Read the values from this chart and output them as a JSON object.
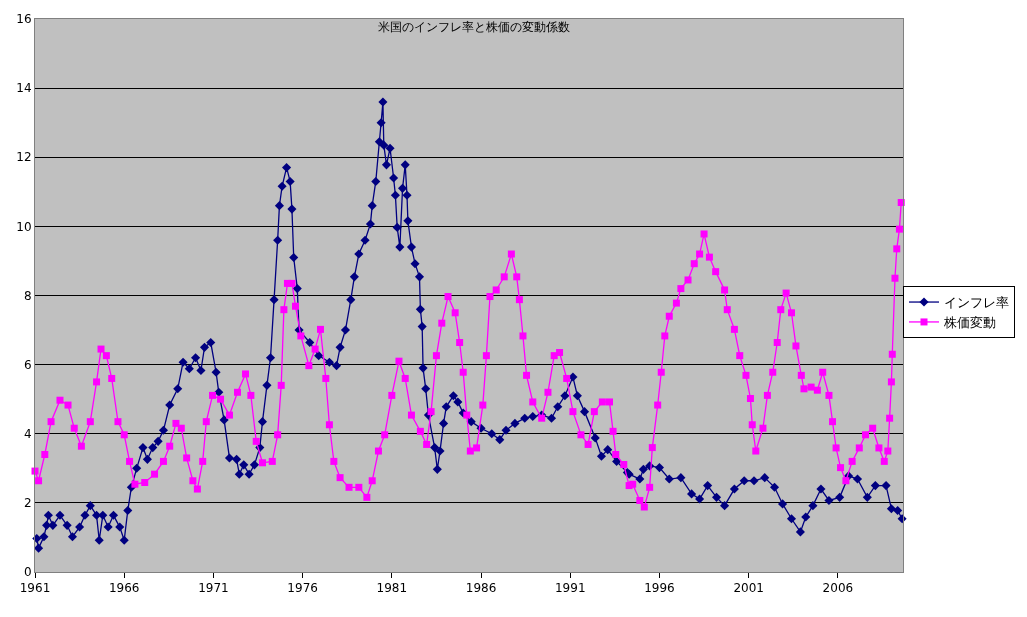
{
  "chart_data": {
    "type": "line",
    "title": "米国のインフレ率と株価の変動係数",
    "xlim": [
      1961,
      2009.65
    ],
    "xticks": [
      1961,
      1966,
      1971,
      1976,
      1981,
      1986,
      1991,
      1996,
      2001,
      2006
    ],
    "ylim": [
      0,
      16
    ],
    "yticks": [
      0,
      2,
      4,
      6,
      8,
      10,
      12,
      14,
      16
    ],
    "grid": "y",
    "legend": "right",
    "series": [
      {
        "name": "インフレ率",
        "color": "#000080",
        "marker": "diamond",
        "x": [
          1961.1,
          1961.2,
          1961.5,
          1961.65,
          1961.75,
          1962.0,
          1962.4,
          1962.8,
          1963.1,
          1963.5,
          1963.8,
          1964.1,
          1964.45,
          1964.6,
          1964.8,
          1965.1,
          1965.4,
          1965.75,
          1966.0,
          1966.2,
          1966.4,
          1966.7,
          1967.05,
          1967.3,
          1967.6,
          1967.9,
          1968.2,
          1968.55,
          1969.0,
          1969.3,
          1969.65,
          1970.0,
          1970.3,
          1970.5,
          1970.85,
          1971.15,
          1971.3,
          1971.6,
          1971.9,
          1972.3,
          1972.45,
          1972.7,
          1973.0,
          1973.3,
          1973.6,
          1973.75,
          1974.0,
          1974.2,
          1974.4,
          1974.6,
          1974.7,
          1974.85,
          1975.1,
          1975.3,
          1975.4,
          1975.5,
          1975.7,
          1975.8,
          1976.4,
          1976.9,
          1977.5,
          1977.9,
          1978.1,
          1978.4,
          1978.7,
          1978.9,
          1979.15,
          1979.5,
          1979.8,
          1979.9,
          1980.1,
          1980.3,
          1980.4,
          1980.5,
          1980.55,
          1980.7,
          1980.9,
          1981.1,
          1981.2,
          1981.3,
          1981.45,
          1981.6,
          1981.75,
          1981.85,
          1981.9,
          1982.1,
          1982.3,
          1982.55,
          1982.6,
          1982.7,
          1982.75,
          1982.9,
          1983.05,
          1983.4,
          1983.55,
          1983.7,
          1983.9,
          1984.05,
          1984.45,
          1984.7,
          1985.0,
          1985.45,
          1986.0,
          1986.6,
          1987.05,
          1987.4,
          1987.9,
          1988.45,
          1988.9,
          1989.4,
          1989.95,
          1990.3,
          1990.7,
          1991.15,
          1991.4,
          1991.8,
          1992.4,
          1992.75,
          1993.1,
          1993.6,
          1994.2,
          1994.3,
          1994.9,
          1995.1,
          1995.45,
          1996.0,
          1996.55,
          1997.2,
          1997.8,
          1998.25,
          1998.7,
          1999.2,
          1999.65,
          2000.2,
          2000.75,
          2001.3,
          2001.9,
          2002.45,
          2002.9,
          2003.4,
          2003.9,
          2004.2,
          2004.6,
          2005.05,
          2005.5,
          2006.1,
          2006.6,
          2007.1,
          2007.65,
          2008.1,
          2008.7,
          2009.0,
          2009.35,
          2009.6
        ],
        "values": [
          0.97,
          0.69,
          1.02,
          1.35,
          1.64,
          1.35,
          1.64,
          1.35,
          1.02,
          1.3,
          1.64,
          1.92,
          1.64,
          0.92,
          1.64,
          1.3,
          1.64,
          1.3,
          0.92,
          1.78,
          2.45,
          3.0,
          3.6,
          3.26,
          3.6,
          3.78,
          4.1,
          4.83,
          5.3,
          6.07,
          5.88,
          6.2,
          5.83,
          6.5,
          6.64,
          5.78,
          5.2,
          4.4,
          3.3,
          3.26,
          2.83,
          3.1,
          2.83,
          3.1,
          3.6,
          4.35,
          5.4,
          6.2,
          7.88,
          9.6,
          10.6,
          11.16,
          11.7,
          11.3,
          10.5,
          9.1,
          8.2,
          7.0,
          6.64,
          6.26,
          6.07,
          5.97,
          6.5,
          7.0,
          7.88,
          8.54,
          9.2,
          9.6,
          10.07,
          10.6,
          11.3,
          12.45,
          13.0,
          13.6,
          12.35,
          11.78,
          12.26,
          11.4,
          10.9,
          9.97,
          9.4,
          11.1,
          11.78,
          10.9,
          10.16,
          9.4,
          8.92,
          8.54,
          7.6,
          7.1,
          5.9,
          5.3,
          4.54,
          3.6,
          2.97,
          3.5,
          4.3,
          4.78,
          5.1,
          4.92,
          4.6,
          4.35,
          4.16,
          4.0,
          3.83,
          4.1,
          4.3,
          4.45,
          4.5,
          4.54,
          4.45,
          4.78,
          5.1,
          5.64,
          5.1,
          4.64,
          3.88,
          3.35,
          3.54,
          3.2,
          2.88,
          2.83,
          2.69,
          2.97,
          3.07,
          3.02,
          2.69,
          2.73,
          2.26,
          2.11,
          2.5,
          2.16,
          1.92,
          2.4,
          2.64,
          2.64,
          2.73,
          2.45,
          1.97,
          1.54,
          1.16,
          1.59,
          1.92,
          2.4,
          2.07,
          2.16,
          2.78,
          2.69,
          2.16,
          2.5,
          2.5,
          1.83,
          1.78,
          1.54
        ]
      },
      {
        "name": "株価変動",
        "color": "#ff00ff",
        "marker": "square",
        "x": [
          1961.0,
          1961.2,
          1961.55,
          1961.9,
          1962.4,
          1962.85,
          1963.2,
          1963.6,
          1964.1,
          1964.45,
          1964.7,
          1965.0,
          1965.3,
          1965.65,
          1966.0,
          1966.3,
          1966.6,
          1967.15,
          1967.7,
          1968.2,
          1968.55,
          1968.9,
          1969.2,
          1969.5,
          1969.85,
          1970.1,
          1970.4,
          1970.6,
          1970.95,
          1971.4,
          1971.9,
          1972.35,
          1972.8,
          1973.1,
          1973.4,
          1973.75,
          1974.3,
          1974.6,
          1974.8,
          1974.95,
          1975.15,
          1975.4,
          1975.6,
          1975.9,
          1976.35,
          1976.7,
          1977.0,
          1977.3,
          1977.5,
          1977.75,
          1978.1,
          1978.6,
          1979.15,
          1979.6,
          1979.9,
          1980.25,
          1980.6,
          1981.0,
          1981.4,
          1981.75,
          1982.1,
          1982.6,
          1982.95,
          1983.2,
          1983.5,
          1983.8,
          1984.15,
          1984.55,
          1984.8,
          1985.0,
          1985.2,
          1985.4,
          1985.75,
          1986.1,
          1986.3,
          1986.5,
          1986.85,
          1987.3,
          1987.7,
          1988.0,
          1988.15,
          1988.35,
          1988.55,
          1988.9,
          1989.4,
          1989.75,
          1990.1,
          1990.4,
          1990.8,
          1991.15,
          1991.6,
          1992.0,
          1992.35,
          1992.8,
          1993.2,
          1993.4,
          1993.55,
          1994.0,
          1994.3,
          1994.5,
          1994.9,
          1995.15,
          1995.45,
          1995.6,
          1995.9,
          1996.1,
          1996.3,
          1996.55,
          1996.95,
          1997.2,
          1997.6,
          1997.95,
          1998.25,
          1998.5,
          1998.8,
          1999.15,
          1999.65,
          1999.8,
          2000.2,
          2000.5,
          2000.85,
          2001.1,
          2001.2,
          2001.4,
          2001.8,
          2002.05,
          2002.35,
          2002.6,
          2002.8,
          2003.1,
          2003.4,
          2003.65,
          2003.95,
          2004.1,
          2004.5,
          2004.85,
          2005.15,
          2005.5,
          2005.7,
          2005.9,
          2006.15,
          2006.45,
          2006.8,
          2007.2,
          2007.55,
          2007.95,
          2008.3,
          2008.6,
          2008.8,
          2008.9,
          2009.0,
          2009.05,
          2009.2,
          2009.3,
          2009.45,
          2009.55
        ],
        "values": [
          2.92,
          2.64,
          3.4,
          4.35,
          4.97,
          4.83,
          4.16,
          3.64,
          4.35,
          5.5,
          6.45,
          6.26,
          5.6,
          4.35,
          3.97,
          3.2,
          2.54,
          2.59,
          2.83,
          3.2,
          3.64,
          4.3,
          4.16,
          3.3,
          2.64,
          2.4,
          3.2,
          4.35,
          5.11,
          5.0,
          4.54,
          5.2,
          5.73,
          5.11,
          3.78,
          3.16,
          3.2,
          3.97,
          5.4,
          7.59,
          8.35,
          8.35,
          7.69,
          6.83,
          5.97,
          6.45,
          7.02,
          5.6,
          4.26,
          3.2,
          2.73,
          2.45,
          2.45,
          2.16,
          2.64,
          3.5,
          3.97,
          5.11,
          6.1,
          5.6,
          4.54,
          4.07,
          3.69,
          4.64,
          6.26,
          7.2,
          7.97,
          7.5,
          6.64,
          5.78,
          4.54,
          3.5,
          3.59,
          4.83,
          6.26,
          7.97,
          8.16,
          8.54,
          9.2,
          8.54,
          7.88,
          6.83,
          5.69,
          4.92,
          4.45,
          5.2,
          6.26,
          6.35,
          5.6,
          4.64,
          3.97,
          3.69,
          4.64,
          4.92,
          4.92,
          4.07,
          3.4,
          3.11,
          2.5,
          2.54,
          2.07,
          1.88,
          2.45,
          3.6,
          4.83,
          5.78,
          6.83,
          7.4,
          7.78,
          8.2,
          8.45,
          8.92,
          9.2,
          9.78,
          9.11,
          8.69,
          8.16,
          7.59,
          7.02,
          6.26,
          5.69,
          5.02,
          4.26,
          3.5,
          4.16,
          5.11,
          5.78,
          6.64,
          7.59,
          8.07,
          7.5,
          6.54,
          5.69,
          5.3,
          5.35,
          5.26,
          5.78,
          5.11,
          4.35,
          3.59,
          3.02,
          2.64,
          3.2,
          3.59,
          3.97,
          4.16,
          3.59,
          3.2,
          3.5,
          4.45,
          5.5,
          6.3,
          8.5,
          9.35,
          9.92,
          10.69
        ]
      }
    ]
  }
}
